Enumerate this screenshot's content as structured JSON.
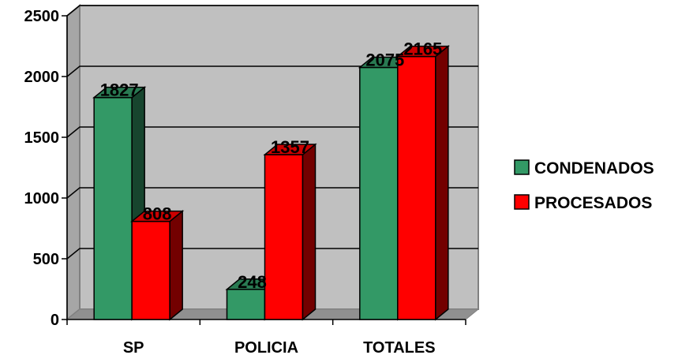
{
  "chart_data": {
    "type": "bar",
    "style": "3d-clustered",
    "categories": [
      "SP",
      "POLICIA",
      "TOTALES"
    ],
    "series": [
      {
        "name": "CONDENADOS",
        "values": [
          1827,
          248,
          2075
        ],
        "color": "#339966"
      },
      {
        "name": "PROCESADOS",
        "values": [
          808,
          1357,
          2165
        ],
        "color": "#ff0000"
      }
    ],
    "yticks": [
      "0",
      "500",
      "1000",
      "1500",
      "2000",
      "2500"
    ],
    "ylim": [
      0,
      2500
    ],
    "grid": true,
    "legend_position": "right",
    "wall_color": "#c0c0c0",
    "data_labels": true
  }
}
